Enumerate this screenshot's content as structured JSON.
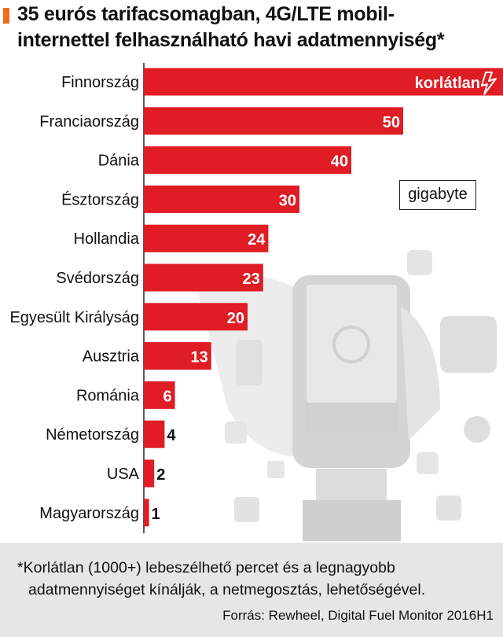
{
  "title": {
    "line1": "35 eurós tarifacsomagban, 4G/LTE mobil-",
    "line2": "internettel felhasználható havi adatmennyiség*"
  },
  "unit_label": "gigabyte",
  "colors": {
    "bar": "#e01c24",
    "title_marker": "#f26b1d",
    "background_illustration": "#dcdcdc",
    "footer": "#e6e6e6"
  },
  "chart_data": {
    "type": "bar",
    "orientation": "horizontal",
    "categories": [
      "Finnország",
      "Franciaország",
      "Dánia",
      "Észtország",
      "Hollandia",
      "Svédország",
      "Egyesült Királyság",
      "Ausztria",
      "Románia",
      "Németország",
      "USA",
      "Magyarország"
    ],
    "values": [
      1000,
      50,
      40,
      30,
      24,
      23,
      20,
      13,
      6,
      4,
      2,
      1
    ],
    "data_labels": [
      "korlátlan",
      "50",
      "40",
      "30",
      "24",
      "23",
      "20",
      "13",
      "6",
      "4",
      "2",
      "1"
    ],
    "unit": "gigabyte",
    "grid": false,
    "legend": "none"
  },
  "footer": {
    "note_line1": "*Korlátlan (1000+) lebeszélhető percet és a legnagyobb",
    "note_line2": "adatmennyiséget kínálják, a netmegosztás, lehetőségével.",
    "source": "Forrás: Rewheel, Digital Fuel Monitor 2016H1"
  }
}
